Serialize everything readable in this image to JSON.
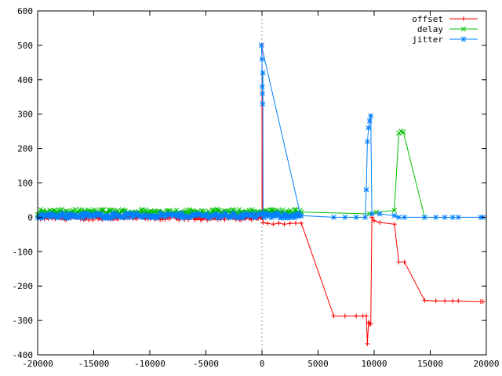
{
  "chart_data": {
    "type": "line",
    "title": "",
    "xlabel": "",
    "ylabel": "",
    "xlim": [
      -20000,
      20000
    ],
    "ylim": [
      -400,
      600
    ],
    "x_ticks": [
      -20000,
      -15000,
      -10000,
      -5000,
      0,
      5000,
      10000,
      15000,
      20000
    ],
    "y_ticks": [
      -400,
      -300,
      -200,
      -100,
      0,
      100,
      200,
      300,
      400,
      500,
      600
    ],
    "x_tick_labels": [
      "-20000",
      "-15000",
      "-10000",
      "-5000",
      "0",
      "5000",
      "10000",
      "15000",
      "20000"
    ],
    "y_tick_labels": [
      "-400",
      "-300",
      "-200",
      "-100",
      "0",
      "100",
      "200",
      "300",
      "400",
      "500",
      "600"
    ],
    "grid": false,
    "zero_line": "vertical dotted at x=0",
    "legend_position": "top-right",
    "series": [
      {
        "name": "offset",
        "color": "#ff0000",
        "marker": "plus",
        "dense_noise": {
          "x_range": [
            -20000,
            0
          ],
          "center": 0,
          "amplitude": 8
        },
        "points": [
          [
            0,
            500
          ],
          [
            30,
            0
          ],
          [
            100,
            -15
          ],
          [
            500,
            -18
          ],
          [
            1000,
            -20
          ],
          [
            1500,
            -17
          ],
          [
            2000,
            -20
          ],
          [
            2500,
            -18
          ],
          [
            3000,
            -17
          ],
          [
            3500,
            -17
          ],
          [
            6400,
            -287
          ],
          [
            7400,
            -287
          ],
          [
            8400,
            -287
          ],
          [
            9000,
            -287
          ],
          [
            9300,
            -287
          ],
          [
            9400,
            -368
          ],
          [
            9500,
            -305
          ],
          [
            9600,
            -310
          ],
          [
            9700,
            -310
          ],
          [
            9800,
            0
          ],
          [
            10000,
            -10
          ],
          [
            10500,
            -15
          ],
          [
            11800,
            -20
          ],
          [
            12200,
            -130
          ],
          [
            12700,
            -130
          ],
          [
            14500,
            -242
          ],
          [
            15500,
            -243
          ],
          [
            16300,
            -243
          ],
          [
            17000,
            -243
          ],
          [
            17500,
            -243
          ],
          [
            19500,
            -245
          ],
          [
            19700,
            -245
          ]
        ]
      },
      {
        "name": "delay",
        "color": "#00c000",
        "marker": "cross",
        "dense_noise": {
          "x_range": [
            -20000,
            3500
          ],
          "center": 15,
          "amplitude": 8
        },
        "points": [
          [
            3500,
            15
          ],
          [
            9600,
            10
          ],
          [
            10200,
            15
          ],
          [
            11800,
            20
          ],
          [
            12200,
            245
          ],
          [
            12400,
            250
          ],
          [
            12600,
            248
          ],
          [
            14500,
            0
          ]
        ]
      },
      {
        "name": "jitter",
        "color": "#0080ff",
        "marker": "star",
        "dense_noise": {
          "x_range": [
            -20000,
            3500
          ],
          "center": 5,
          "amplitude": 8
        },
        "points": [
          [
            -50,
            500
          ],
          [
            0,
            460
          ],
          [
            20,
            380
          ],
          [
            40,
            360
          ],
          [
            60,
            330
          ],
          [
            80,
            420
          ],
          [
            100,
            10
          ],
          [
            3500,
            5
          ],
          [
            6400,
            0
          ],
          [
            7400,
            0
          ],
          [
            8400,
            0
          ],
          [
            9200,
            0
          ],
          [
            9300,
            80
          ],
          [
            9400,
            220
          ],
          [
            9500,
            260
          ],
          [
            9600,
            280
          ],
          [
            9700,
            295
          ],
          [
            9800,
            10
          ],
          [
            10500,
            10
          ],
          [
            11800,
            5
          ],
          [
            12200,
            0
          ],
          [
            12700,
            0
          ],
          [
            14500,
            0
          ],
          [
            15500,
            0
          ],
          [
            16300,
            0
          ],
          [
            17000,
            0
          ],
          [
            17500,
            0
          ],
          [
            19500,
            0
          ],
          [
            19700,
            0
          ]
        ]
      }
    ]
  }
}
